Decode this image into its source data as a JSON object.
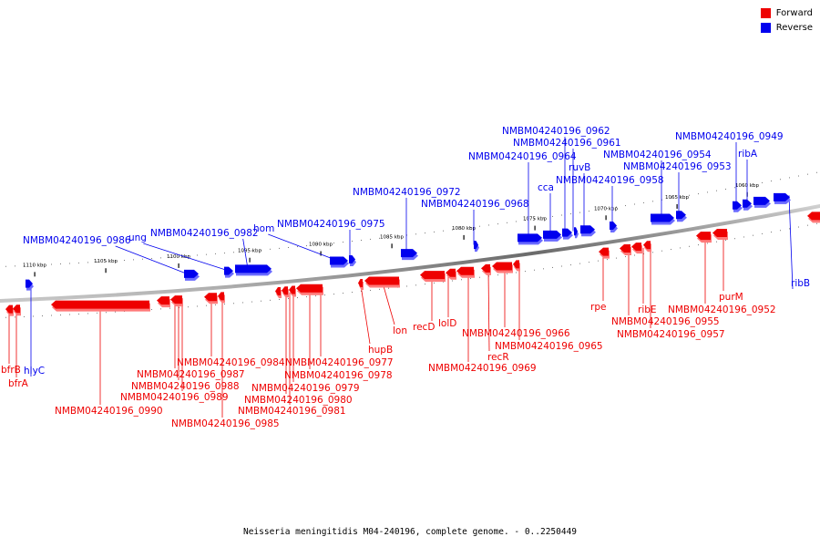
{
  "legend": {
    "forward": {
      "label": "Forward",
      "color": "#ee0000"
    },
    "reverse": {
      "label": "Reverse",
      "color": "#0000ee"
    }
  },
  "caption": "Neisseria meningitidis M04-240196, complete genome. - 0..2250449",
  "scale_ticks": [
    "1110 kbp",
    "1105 kbp",
    "1100 kbp",
    "1095 kbp",
    "1090 kbp",
    "1085 kbp",
    "1080 kbp",
    "1075 kbp",
    "1070 kbp",
    "1065 kbp",
    "1060 kbp"
  ],
  "reverse_labels": [
    "NMBM04240196_0986",
    "ung",
    "NMBM04240196_0982",
    "hom",
    "NMBM04240196_0975",
    "NMBM04240196_0972",
    "NMBM04240196_0968",
    "NMBM04240196_0964",
    "cca",
    "NMBM04240196_0962",
    "NMBM04240196_0961",
    "ruvB",
    "NMBM04240196_0958",
    "NMBM04240196_0954",
    "NMBM04240196_0953",
    "NMBM04240196_0949",
    "ribA",
    "hlyC",
    "ribB"
  ],
  "forward_labels": [
    "bfrB",
    "bfrA",
    "NMBM04240196_0990",
    "NMBM04240196_0989",
    "NMBM04240196_0988",
    "NMBM04240196_0987",
    "NMBM04240196_0985",
    "NMBM04240196_0984",
    "NMBM04240196_0981",
    "NMBM04240196_0980",
    "NMBM04240196_0979",
    "NMBM04240196_0978",
    "NMBM04240196_0977",
    "hupB",
    "lon",
    "recD",
    "lolD",
    "NMBM04240196_0969",
    "recR",
    "NMBM04240196_0966",
    "NMBM04240196_0965",
    "rpe",
    "ribE",
    "NMBM04240196_0957",
    "NMBM04240196_0955",
    "purM",
    "NMBM04240196_0952"
  ]
}
